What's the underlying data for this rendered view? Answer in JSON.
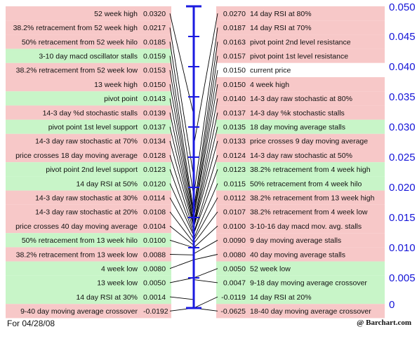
{
  "chart_data": {
    "type": "table",
    "title": "",
    "ylim": [
      0,
      0.05
    ],
    "y_ticks": [
      "0.050",
      "0.045",
      "0.040",
      "0.035",
      "0.030",
      "0.025",
      "0.020",
      "0.015",
      "0.010",
      "0.005",
      "0"
    ],
    "colors": {
      "support": "#c8f5c8",
      "resistance": "#f7c8c8",
      "current": "#ffffff",
      "axis": "#1a1ae0",
      "line": "#000000"
    },
    "left_rows": [
      {
        "label": "52 week high",
        "value": "0.0320",
        "color": "resistance"
      },
      {
        "label": "38.2% retracement from 52 week high",
        "value": "0.0217",
        "color": "resistance"
      },
      {
        "label": "50% retracement from 52 week hilo",
        "value": "0.0185",
        "color": "resistance"
      },
      {
        "label": "3-10 day macd oscillator stalls",
        "value": "0.0159",
        "color": "support"
      },
      {
        "label": "38.2% retracement from 52 week low",
        "value": "0.0153",
        "color": "resistance"
      },
      {
        "label": "13 week high",
        "value": "0.0150",
        "color": "resistance"
      },
      {
        "label": "pivot point",
        "value": "0.0143",
        "color": "support"
      },
      {
        "label": "14-3 day %d stochastic stalls",
        "value": "0.0139",
        "color": "resistance"
      },
      {
        "label": "pivot point 1st level support",
        "value": "0.0137",
        "color": "support"
      },
      {
        "label": "14-3 day raw stochastic at 70%",
        "value": "0.0134",
        "color": "resistance"
      },
      {
        "label": "price crosses 18 day moving average",
        "value": "0.0128",
        "color": "resistance"
      },
      {
        "label": "pivot point 2nd level support",
        "value": "0.0123",
        "color": "support"
      },
      {
        "label": "14 day RSI at 50%",
        "value": "0.0120",
        "color": "support"
      },
      {
        "label": "14-3 day raw stochastic at 30%",
        "value": "0.0114",
        "color": "resistance"
      },
      {
        "label": "14-3 day raw stochastic at 20%",
        "value": "0.0108",
        "color": "resistance"
      },
      {
        "label": "price crosses 40 day moving average",
        "value": "0.0104",
        "color": "resistance"
      },
      {
        "label": "50% retracement from 13 week hilo",
        "value": "0.0100",
        "color": "support"
      },
      {
        "label": "38.2% retracement from 13 week low",
        "value": "0.0088",
        "color": "resistance"
      },
      {
        "label": "4 week low",
        "value": "0.0080",
        "color": "support"
      },
      {
        "label": "13 week low",
        "value": "0.0050",
        "color": "support"
      },
      {
        "label": "14 day RSI at 30%",
        "value": "0.0014",
        "color": "support"
      },
      {
        "label": "9-40 day moving average crossover",
        "value": "-0.0192",
        "color": "resistance"
      }
    ],
    "right_rows": [
      {
        "label": "14 day RSI at 80%",
        "value": "0.0270",
        "color": "resistance"
      },
      {
        "label": "14 day RSI at 70%",
        "value": "0.0187",
        "color": "resistance"
      },
      {
        "label": "pivot point 2nd level resistance",
        "value": "0.0163",
        "color": "resistance"
      },
      {
        "label": "pivot point 1st level resistance",
        "value": "0.0157",
        "color": "resistance"
      },
      {
        "label": "current price",
        "value": "0.0150",
        "color": "current"
      },
      {
        "label": "4 week high",
        "value": "0.0150",
        "color": "resistance"
      },
      {
        "label": "14-3 day raw stochastic at 80%",
        "value": "0.0140",
        "color": "resistance"
      },
      {
        "label": "14-3 day %k stochastic stalls",
        "value": "0.0137",
        "color": "resistance"
      },
      {
        "label": "18 day moving average stalls",
        "value": "0.0135",
        "color": "support"
      },
      {
        "label": "price crosses 9 day moving average",
        "value": "0.0133",
        "color": "resistance"
      },
      {
        "label": "14-3 day raw stochastic at 50%",
        "value": "0.0124",
        "color": "resistance"
      },
      {
        "label": "38.2% retracement from 4 week high",
        "value": "0.0123",
        "color": "support"
      },
      {
        "label": "50% retracement from 4 week hilo",
        "value": "0.0115",
        "color": "support"
      },
      {
        "label": "38.2% retracement from 13 week high",
        "value": "0.0112",
        "color": "resistance"
      },
      {
        "label": "38.2% retracement from 4 week low",
        "value": "0.0107",
        "color": "resistance"
      },
      {
        "label": "3-10-16 day macd mov. avg. stalls",
        "value": "0.0100",
        "color": "resistance"
      },
      {
        "label": "9 day moving average stalls",
        "value": "0.0090",
        "color": "resistance"
      },
      {
        "label": "40 day moving average stalls",
        "value": "0.0080",
        "color": "resistance"
      },
      {
        "label": "52 week low",
        "value": "0.0050",
        "color": "support"
      },
      {
        "label": "9-18 day moving average crossover",
        "value": "0.0047",
        "color": "support"
      },
      {
        "label": "14 day RSI at 20%",
        "value": "-0.0119",
        "color": "support"
      },
      {
        "label": "18-40 day moving average crossover",
        "value": "-0.0625",
        "color": "resistance"
      }
    ]
  },
  "footer": {
    "date_label": "For 04/28/08",
    "source": "@ Barchart.com"
  }
}
